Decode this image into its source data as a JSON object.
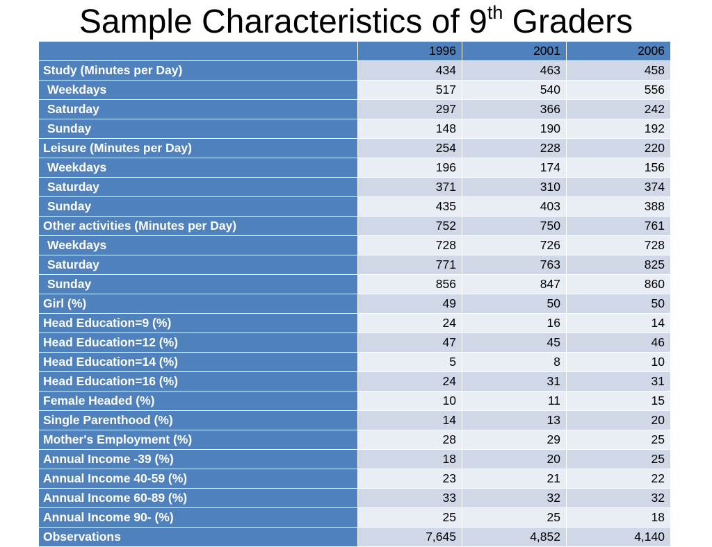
{
  "title": {
    "main": "Sample Characteristics of 9",
    "sup": "th",
    "tail": " Graders"
  },
  "table": {
    "header": [
      "",
      "1996",
      "2001",
      "2006"
    ],
    "rows": [
      {
        "label": "Study (Minutes per Day)",
        "sub": false,
        "values": [
          "434",
          "463",
          "458"
        ]
      },
      {
        "label": "Weekdays",
        "sub": true,
        "values": [
          "517",
          "540",
          "556"
        ]
      },
      {
        "label": "Saturday",
        "sub": true,
        "values": [
          "297",
          "366",
          "242"
        ]
      },
      {
        "label": "Sunday",
        "sub": true,
        "values": [
          "148",
          "190",
          "192"
        ]
      },
      {
        "label": "Leisure (Minutes per Day)",
        "sub": false,
        "values": [
          "254",
          "228",
          "220"
        ]
      },
      {
        "label": "Weekdays",
        "sub": true,
        "values": [
          "196",
          "174",
          "156"
        ]
      },
      {
        "label": "Saturday",
        "sub": true,
        "values": [
          "371",
          "310",
          "374"
        ]
      },
      {
        "label": "Sunday",
        "sub": true,
        "values": [
          "435",
          "403",
          "388"
        ]
      },
      {
        "label": "Other activities (Minutes per Day)",
        "sub": false,
        "values": [
          "752",
          "750",
          "761"
        ]
      },
      {
        "label": "Weekdays",
        "sub": true,
        "values": [
          "728",
          "726",
          "728"
        ]
      },
      {
        "label": "Saturday",
        "sub": true,
        "values": [
          "771",
          "763",
          "825"
        ]
      },
      {
        "label": "Sunday",
        "sub": true,
        "values": [
          "856",
          "847",
          "860"
        ]
      },
      {
        "label": "Girl (%)",
        "sub": false,
        "values": [
          "49",
          "50",
          "50"
        ]
      },
      {
        "label": "Head Education=9 (%)",
        "sub": false,
        "values": [
          "24",
          "16",
          "14"
        ]
      },
      {
        "label": "Head Education=12 (%)",
        "sub": false,
        "values": [
          "47",
          "45",
          "46"
        ]
      },
      {
        "label": "Head Education=14 (%)",
        "sub": false,
        "values": [
          "5",
          "8",
          "10"
        ]
      },
      {
        "label": "Head Education=16 (%)",
        "sub": false,
        "values": [
          "24",
          "31",
          "31"
        ]
      },
      {
        "label": "Female Headed (%)",
        "sub": false,
        "values": [
          "10",
          "11",
          "15"
        ]
      },
      {
        "label": "Single Parenthood (%)",
        "sub": false,
        "values": [
          "14",
          "13",
          "20"
        ]
      },
      {
        "label": "Mother's Employment (%)",
        "sub": false,
        "values": [
          "28",
          "29",
          "25"
        ]
      },
      {
        "label": "Annual Income -39 (%)",
        "sub": false,
        "values": [
          "18",
          "20",
          "25"
        ]
      },
      {
        "label": "Annual Income 40-59 (%)",
        "sub": false,
        "values": [
          "23",
          "21",
          "22"
        ]
      },
      {
        "label": "Annual Income 60-89 (%)",
        "sub": false,
        "values": [
          "33",
          "32",
          "32"
        ]
      },
      {
        "label": "Annual Income 90- (%)",
        "sub": false,
        "values": [
          "25",
          "25",
          "18"
        ]
      },
      {
        "label": "Observations",
        "sub": false,
        "values": [
          "7,645",
          "4,852",
          "4,140"
        ]
      }
    ]
  },
  "colors": {
    "header_bg": "#4f81bd",
    "label_bg": "#4f81bd",
    "label_text": "#ffffff",
    "band_dark": "#d0d8e8",
    "band_light": "#e9edf4"
  }
}
